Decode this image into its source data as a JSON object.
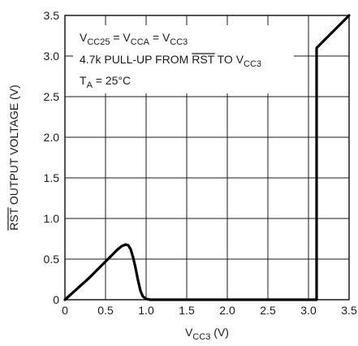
{
  "chart_data": {
    "type": "line",
    "xlabel": {
      "main": "V",
      "sub": "CC3",
      "unit": " (V)"
    },
    "ylabel": {
      "over": "RST",
      "rest": " OUTPUT VOLTAGE (V)"
    },
    "xlim": [
      0,
      3.5
    ],
    "ylim": [
      0,
      3.5
    ],
    "xticks": [
      0,
      0.5,
      1.0,
      1.5,
      2.0,
      2.5,
      3.0,
      3.5
    ],
    "xtick_labels": [
      "0",
      "0.5",
      "1.0",
      "1.5",
      "2.0",
      "2.5",
      "3.0",
      "3.5"
    ],
    "yticks": [
      0,
      0.5,
      1.0,
      1.5,
      2.0,
      2.5,
      3.0,
      3.5
    ],
    "ytick_labels": [
      "0",
      "0.5",
      "1.0",
      "1.5",
      "2.0",
      "2.5",
      "3.0",
      "3.5"
    ],
    "grid": true,
    "annotations": [
      {
        "parts": [
          {
            "t": "V"
          },
          {
            "t": "CC25",
            "sub": true
          },
          {
            "t": " = V"
          },
          {
            "t": "CCA",
            "sub": true
          },
          {
            "t": " = V"
          },
          {
            "t": "CC3",
            "sub": true
          }
        ]
      },
      {
        "parts": [
          {
            "t": "4.7k PULL-UP FROM "
          },
          {
            "t": "RST",
            "over": true
          },
          {
            "t": " TO V"
          },
          {
            "t": "CC3",
            "sub": true
          }
        ]
      },
      {
        "parts": [
          {
            "t": "T"
          },
          {
            "t": "A",
            "sub": true
          },
          {
            "t": " = 25°C"
          }
        ]
      }
    ],
    "series": [
      {
        "points": [
          [
            0,
            0
          ],
          [
            0.1,
            0.09
          ],
          [
            0.2,
            0.18
          ],
          [
            0.3,
            0.27
          ],
          [
            0.4,
            0.37
          ],
          [
            0.5,
            0.47
          ],
          [
            0.6,
            0.57
          ],
          [
            0.65,
            0.62
          ],
          [
            0.7,
            0.66
          ],
          [
            0.75,
            0.68
          ],
          [
            0.78,
            0.67
          ],
          [
            0.81,
            0.62
          ],
          [
            0.84,
            0.52
          ],
          [
            0.87,
            0.39
          ],
          [
            0.9,
            0.24
          ],
          [
            0.93,
            0.11
          ],
          [
            0.96,
            0.04
          ],
          [
            1.0,
            0.01
          ],
          [
            1.05,
            0.0
          ],
          [
            1.2,
            0.0
          ],
          [
            2.0,
            0.0
          ],
          [
            2.5,
            0.0
          ],
          [
            3.0,
            0.0
          ],
          [
            3.1,
            0.0
          ],
          [
            3.1,
            3.1
          ],
          [
            3.2,
            3.2
          ],
          [
            3.3,
            3.3
          ],
          [
            3.4,
            3.4
          ],
          [
            3.5,
            3.5
          ]
        ]
      }
    ]
  }
}
